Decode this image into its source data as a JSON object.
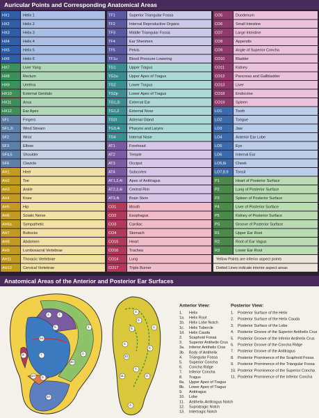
{
  "header": {
    "title": "Auricular Points and Corresponding Anatomical Areas"
  },
  "table": {
    "columns": [
      {
        "groups": [
          {
            "color": "#2f5ea8",
            "light": "#a9c0e4",
            "rows": [
              [
                "HX1",
                "Helix 1"
              ],
              [
                "HX2",
                "Helix 2"
              ],
              [
                "HX3",
                "Helix 3"
              ],
              [
                "HX4",
                "Helix 4"
              ],
              [
                "HX5",
                "Helix 5"
              ],
              [
                "HX6",
                "Helix 6"
              ]
            ]
          },
          {
            "color": "#3f8f5a",
            "light": "#b0d8b8",
            "rows": [
              [
                "HX7",
                "Liver Yang"
              ],
              [
                "HX8",
                "Rectum"
              ],
              [
                "HX9",
                "Urethra"
              ],
              [
                "HX10",
                "External Genitals"
              ],
              [
                "HX11",
                "Anus"
              ],
              [
                "HX12",
                "Ear Apex"
              ]
            ]
          },
          {
            "color": "#5d7fa8",
            "light": "#c6d3e4",
            "rows": [
              [
                "SF1",
                "Fingers"
              ],
              [
                "SF1,2i",
                "Wind Stream"
              ],
              [
                "SF2",
                "Wrist"
              ],
              [
                "SF3",
                "Elbow"
              ],
              [
                "SF4,5",
                "Shoulder"
              ],
              [
                "SF6",
                "Clavicle"
              ]
            ]
          },
          {
            "color": "#c19a1f",
            "light": "#f2e1a4",
            "rows": [
              [
                "AH1",
                "Heel"
              ],
              [
                "AH2",
                "Toe"
              ],
              [
                "AH3",
                "Ankle"
              ],
              [
                "AH4",
                "Knee"
              ],
              [
                "AH5",
                "Hip"
              ],
              [
                "AH6",
                "Sciatic Nerve"
              ],
              [
                "AH6a",
                "Sympathetic"
              ],
              [
                "AH7",
                "Buttocks"
              ],
              [
                "AH8",
                "Abdomen"
              ],
              [
                "AH9",
                "Lumbosacral Vertebrae"
              ],
              [
                "AH11",
                "Thoracic Vertebrae"
              ],
              [
                "AH13",
                "Cervical Vertebrae"
              ]
            ]
          }
        ]
      },
      {
        "groups": [
          {
            "color": "#5b5aa0",
            "light": "#cbc8e8",
            "rows": [
              [
                "TF1",
                "Superior Triangular Fossa"
              ],
              [
                "TF2",
                "Internal Reproductive Organs"
              ],
              [
                "TF3",
                "Middle Triangular Fossa"
              ],
              [
                "TF4",
                "Ear Shenmen"
              ],
              [
                "TF5",
                "Pelvis"
              ],
              [
                "TF1u",
                "Blood Pressure Lowering"
              ]
            ]
          },
          {
            "color": "#3c8d8f",
            "light": "#acd8d6",
            "rows": [
              [
                "TG1",
                "Upper Tragus"
              ],
              [
                "TG1u",
                "Upper Apex of Tragus"
              ],
              [
                "TG2",
                "Lower Tragus"
              ],
              [
                "TG2p",
                "Lower Apex of Tragus"
              ],
              [
                "TG1,2i",
                "External Ear"
              ],
              [
                "TG1,2",
                "External Nose"
              ],
              [
                "TG2l",
                "Adrenal Gland"
              ],
              [
                "TG3,4i",
                "Pharynx and Larynx"
              ],
              [
                "TG4",
                "Internal Nose"
              ]
            ]
          },
          {
            "color": "#7a5aa0",
            "light": "#d6c7e8",
            "rows": [
              [
                "AT1",
                "Forehead"
              ],
              [
                "AT2",
                "Temple"
              ],
              [
                "AT3",
                "Occiput"
              ],
              [
                "AT4",
                "Subcortex"
              ],
              [
                "AT1,2,4i",
                "Apex of Antitragus"
              ],
              [
                "AT2,3,4i",
                "Central Rim"
              ],
              [
                "AT3,4i",
                "Brain Stem"
              ]
            ]
          },
          {
            "color": "#b03a5a",
            "light": "#f0bcc9",
            "rows": [
              [
                "CO1",
                "Mouth"
              ],
              [
                "CO2",
                "Esophagus"
              ],
              [
                "CO3",
                "Cardiac"
              ],
              [
                "CO4",
                "Stomach"
              ],
              [
                "CO15",
                "Heart"
              ],
              [
                "CO16",
                "Trachea"
              ],
              [
                "CO14",
                "Lung"
              ],
              [
                "CO17",
                "Triple Burner"
              ]
            ]
          }
        ]
      },
      {
        "groups": [
          {
            "color": "#8e3b6b",
            "light": "#e9c2d9",
            "rows": [
              [
                "CO5",
                "Duodenum"
              ],
              [
                "CO6",
                "Small Intestine"
              ],
              [
                "CO7",
                "Large Intestine"
              ],
              [
                "CO8",
                "Appendix"
              ],
              [
                "CO9",
                "Angle of Superior Concha"
              ],
              [
                "CO10",
                "Bladder"
              ],
              [
                "CO11",
                "Kidney"
              ],
              [
                "CO12",
                "Pancreas and Gallbladder"
              ],
              [
                "CO13",
                "Liver"
              ],
              [
                "CO18",
                "Endocrine"
              ],
              [
                "CO19",
                "Spleen"
              ]
            ]
          },
          {
            "color": "#3d6aa8",
            "light": "#bccde9",
            "rows": [
              [
                "LO1",
                "Tooth"
              ],
              [
                "LO2",
                "Tongue"
              ],
              [
                "LO3",
                "Jaw"
              ],
              [
                "LO4",
                "Anterior Ear Lobe"
              ],
              [
                "LO5",
                "Eye"
              ],
              [
                "LO6",
                "Internal Ear"
              ],
              [
                "LO5,6i",
                "Cheek"
              ],
              [
                "LO7,8,9",
                "Tonsil"
              ]
            ]
          },
          {
            "color": "#4b8a4b",
            "light": "#badcb3",
            "rows": [
              [
                "P1",
                "Heart of Posterior Surface"
              ],
              [
                "P2",
                "Lung of Posterior Surface"
              ],
              [
                "P3",
                "Spleen of Posterior Surface"
              ],
              [
                "P4",
                "Liver of Posterior Surface"
              ],
              [
                "P5",
                "Kidney of Posterior Surface"
              ],
              [
                "PS",
                "Groove of Posterior Surface"
              ],
              [
                "R1",
                "Upper Ear Root"
              ],
              [
                "R2",
                "Root of Ear Vagus"
              ],
              [
                "R3",
                "Lower Ear Root"
              ]
            ]
          }
        ]
      }
    ],
    "legend": [
      "Yellow Points are inferior aspect points",
      "Dotted Lines indicate interior aspect areas"
    ]
  },
  "ear_section": {
    "title": "Anatomical Areas of the Anterior and Posterior Ear Surfaces",
    "anterior": {
      "heading": "Anterior View:",
      "items": [
        [
          "1.",
          "Helix"
        ],
        [
          "1a.",
          "Helix Root"
        ],
        [
          "1b.",
          "Helix Lobe Notch"
        ],
        [
          "1c.",
          "Helix Tubercle"
        ],
        [
          "1d.",
          "Helix Cauda"
        ],
        [
          "2.",
          "Scaphoid Fossa"
        ],
        [
          "3.",
          "Superior Antihelix Crus"
        ],
        [
          "3a.",
          "Inferior Antihelix Crus"
        ],
        [
          "3b.",
          "Body of Antihelix"
        ],
        [
          "4.",
          "Triangular Fossa"
        ],
        [
          "5.",
          "Superior Concha"
        ],
        [
          "6.",
          "Concha Ridge"
        ],
        [
          "7.",
          "Inferior Concha"
        ],
        [
          "8.",
          "Tragus"
        ],
        [
          "8a.",
          "Upper Apex of Tragus"
        ],
        [
          "8b.",
          "Lower Apex of Tragus"
        ],
        [
          "9.",
          "Antitragus"
        ],
        [
          "10.",
          "Lobe"
        ],
        [
          "11.",
          "Antihelix-Antitragus Notch"
        ],
        [
          "12.",
          "Supratragic Notch"
        ],
        [
          "13.",
          "Intertragic Notch"
        ]
      ]
    },
    "posterior": {
      "heading": "Posterior View:",
      "items": [
        [
          "1.",
          "Posterior Surface of the Helix"
        ],
        [
          "2.",
          "Posterior Surface of the Helix Cauda"
        ],
        [
          "3.",
          "Posterior Surface of the Lobe"
        ],
        [
          "4.",
          "Posterior Groove of the Superior Antihelix Crus"
        ],
        [
          "5.",
          "Posterior Groove of the Inferior Antihelix Crus"
        ],
        [
          "6.",
          "Posterior Groove of the Concha Ridge"
        ],
        [
          "7.",
          "Posterior Groove of the Antitragus"
        ],
        [
          "8.",
          "Posterior Prominence of the Scaphoid Fossa"
        ],
        [
          "9.",
          "Posterior Prominence of the Triangular Fossa"
        ],
        [
          "10.",
          "Posterior Prominence of the Superior Concha"
        ],
        [
          "11.",
          "Posterior Prominence of the Inferior Concha"
        ]
      ]
    }
  }
}
